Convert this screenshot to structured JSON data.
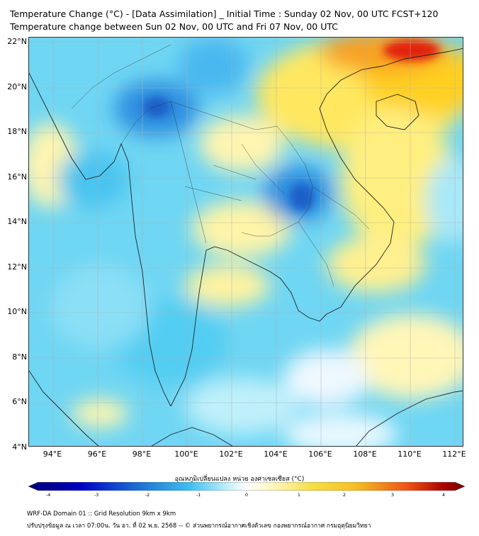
{
  "title_line1": "Temperature Change (°C) - [Data Assimilation] _ Initial Time : Sunday 02 Nov, 00 UTC FCST+120",
  "title_line2": "Temperature change between Sun 02 Nov, 00 UTC and Fri 07 Nov, 00 UTC",
  "lat_ticks": [
    "22°N",
    "20°N",
    "18°N",
    "16°N",
    "14°N",
    "12°N",
    "10°N",
    "8°N",
    "6°N",
    "4°N"
  ],
  "lon_ticks": [
    "94°E",
    "96°E",
    "98°E",
    "100°E",
    "102°E",
    "104°E",
    "106°E",
    "108°E",
    "110°E",
    "112°E"
  ],
  "colorbar_title": "อุณหภูมิเปลี่ยนแปลง หน่วย องศาเซลเซียส (°C)",
  "colorbar_labels": [
    "-4",
    "-3",
    "-2",
    "-1",
    "0",
    "1",
    "2",
    "3",
    "4"
  ],
  "footer_line1": "WRF-DA Domain 01 :: Grid Resolution 9km x 9km",
  "footer_line2": "ปรับปรุงข้อมูล ณ เวลา 07:00น. วัน อา. ที่ 02 พ.ย. 2568 -- © ส่วนพยากรณ์อากาศเชิงตัวเลข กองพยากรณ์อากาศ กรมอุตุนิยมวิทยา",
  "colors": {
    "cold_strong": "#00006e",
    "cold": "#1a6fd6",
    "cool": "#3cc0ef",
    "light_cool": "#9fe3f7",
    "neutral": "#ffffff",
    "light_warm": "#fff3a0",
    "warm": "#f5d020",
    "hot": "#f07010",
    "hot_strong": "#6e0000"
  },
  "map_extent": {
    "lon": [
      93,
      112.5
    ],
    "lat": [
      4,
      22.2
    ]
  }
}
